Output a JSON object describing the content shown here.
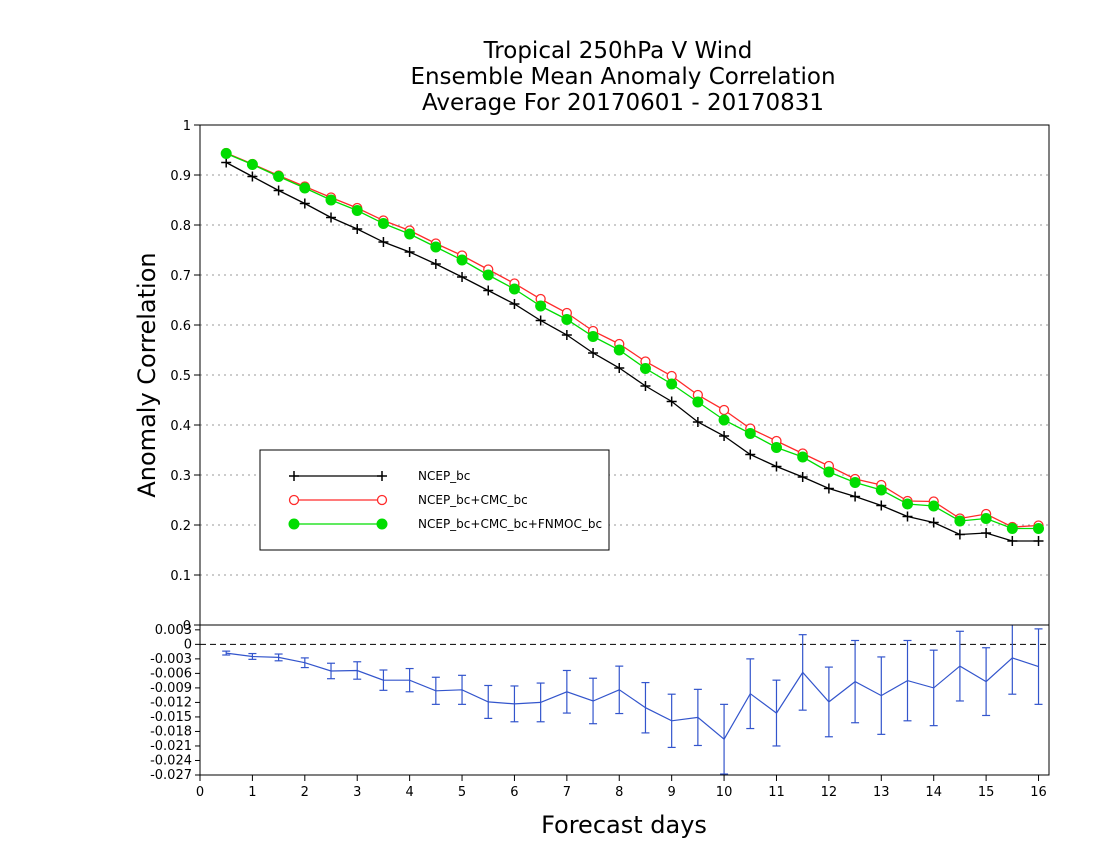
{
  "chart_data": [
    {
      "type": "line",
      "title_lines": [
        "Tropical 250hPa V Wind",
        "Ensemble Mean Anomaly Correlation",
        "Average For 20170601 - 20170831"
      ],
      "xlabel": "Forecast days",
      "ylabel": "Anomaly Correlation",
      "xlim": [
        0,
        16.2
      ],
      "ylim": [
        0,
        1
      ],
      "x_ticks": [
        "0",
        "1",
        "2",
        "3",
        "4",
        "5",
        "6",
        "7",
        "8",
        "9",
        "10",
        "11",
        "12",
        "13",
        "14",
        "15",
        "16"
      ],
      "y_ticks": [
        "0",
        "0.1",
        "0.2",
        "0.3",
        "0.4",
        "0.5",
        "0.6",
        "0.7",
        "0.8",
        "0.9",
        "1"
      ],
      "grid": "horizontal-dotted",
      "legend_position": "left-middle",
      "x": [
        0.5,
        1,
        1.5,
        2,
        2.5,
        3,
        3.5,
        4,
        4.5,
        5,
        5.5,
        6,
        6.5,
        7,
        7.5,
        8,
        8.5,
        9,
        9.5,
        10,
        10.5,
        11,
        11.5,
        12,
        12.5,
        13,
        13.5,
        14,
        14.5,
        15,
        15.5,
        16
      ],
      "series": [
        {
          "name": "NCEP_bc",
          "color": "#000000",
          "marker": "plus",
          "values": [
            0.925,
            0.897,
            0.869,
            0.843,
            0.815,
            0.792,
            0.766,
            0.746,
            0.722,
            0.696,
            0.669,
            0.642,
            0.609,
            0.58,
            0.544,
            0.514,
            0.478,
            0.447,
            0.406,
            0.378,
            0.341,
            0.317,
            0.296,
            0.273,
            0.257,
            0.239,
            0.217,
            0.205,
            0.181,
            0.184,
            0.168,
            0.168
          ]
        },
        {
          "name": "NCEP_bc+CMC_bc",
          "color": "#ff2a2a",
          "marker": "open-circle",
          "values": [
            0.944,
            0.922,
            0.899,
            0.877,
            0.855,
            0.834,
            0.809,
            0.789,
            0.763,
            0.739,
            0.711,
            0.683,
            0.652,
            0.624,
            0.588,
            0.562,
            0.527,
            0.498,
            0.46,
            0.43,
            0.393,
            0.368,
            0.343,
            0.318,
            0.292,
            0.28,
            0.248,
            0.247,
            0.213,
            0.222,
            0.196,
            0.199
          ]
        },
        {
          "name": "NCEP_bc+CMC_bc+FNMOC_bc",
          "color": "#00dd00",
          "marker": "filled-circle",
          "values": [
            0.943,
            0.921,
            0.897,
            0.874,
            0.85,
            0.829,
            0.803,
            0.782,
            0.756,
            0.73,
            0.7,
            0.672,
            0.638,
            0.611,
            0.577,
            0.55,
            0.513,
            0.482,
            0.446,
            0.41,
            0.383,
            0.355,
            0.336,
            0.306,
            0.285,
            0.27,
            0.242,
            0.238,
            0.208,
            0.213,
            0.193,
            0.193
          ]
        }
      ]
    },
    {
      "type": "line",
      "ylim": [
        -0.027,
        0.004
      ],
      "xlim": [
        0,
        16.2
      ],
      "y_ticks": [
        "0.003",
        "0",
        "-0.003",
        "-0.006",
        "-0.009",
        "-0.012",
        "-0.015",
        "-0.018",
        "-0.021",
        "-0.024",
        "-0.027"
      ],
      "reference_line": 0,
      "series": [
        {
          "color": "#3355cc",
          "marker": "error-bar",
          "x": [
            0.5,
            1,
            1.5,
            2,
            2.5,
            3,
            3.5,
            4,
            4.5,
            5,
            5.5,
            6,
            6.5,
            7,
            7.5,
            8,
            8.5,
            9,
            9.5,
            10,
            10.5,
            11,
            11.5,
            12,
            12.5,
            13,
            13.5,
            14,
            14.5,
            15,
            15.5,
            16
          ],
          "values": [
            -0.0018,
            -0.0025,
            -0.0027,
            -0.0038,
            -0.0055,
            -0.0054,
            -0.0074,
            -0.0074,
            -0.0096,
            -0.0094,
            -0.0119,
            -0.0123,
            -0.012,
            -0.0098,
            -0.0117,
            -0.0094,
            -0.0131,
            -0.0158,
            -0.0151,
            -0.0196,
            -0.0102,
            -0.0142,
            -0.0058,
            -0.0119,
            -0.0077,
            -0.0106,
            -0.0075,
            -0.009,
            -0.0045,
            -0.0077,
            -0.0028,
            -0.0046
          ],
          "err": [
            0.0004,
            0.0006,
            0.0007,
            0.001,
            0.0016,
            0.0018,
            0.0021,
            0.0024,
            0.0028,
            0.003,
            0.0034,
            0.0037,
            0.004,
            0.0044,
            0.0047,
            0.0049,
            0.0052,
            0.0055,
            0.0058,
            0.0072,
            0.0072,
            0.0068,
            0.0078,
            0.0072,
            0.0085,
            0.008,
            0.0083,
            0.0078,
            0.0072,
            0.007,
            0.0075,
            0.0078
          ]
        }
      ]
    }
  ]
}
